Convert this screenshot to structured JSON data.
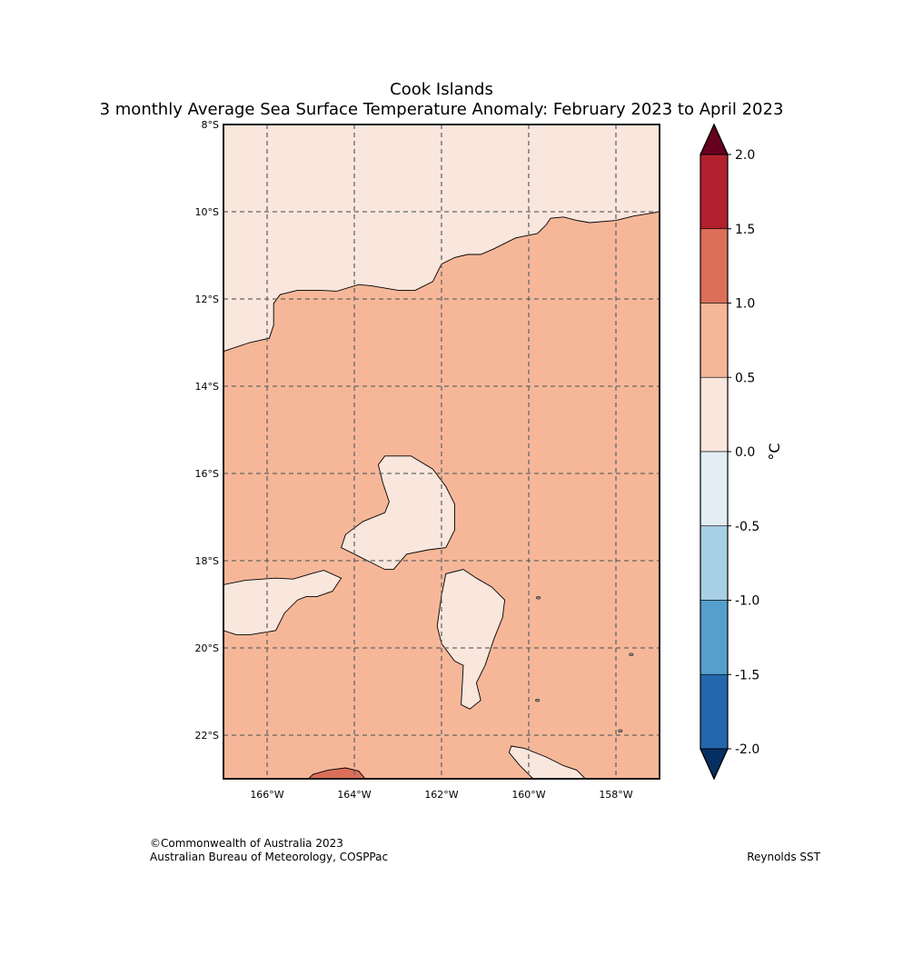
{
  "title": "Cook Islands",
  "subtitle": "3 monthly Average Sea Surface Temperature Anomaly: February 2023 to April 2023",
  "map": {
    "lon_range": [
      -167,
      -157
    ],
    "lat_range": [
      -23,
      -8
    ],
    "lon_ticks": [
      {
        "value": -166,
        "label": "166°W"
      },
      {
        "value": -164,
        "label": "164°W"
      },
      {
        "value": -162,
        "label": "162°W"
      },
      {
        "value": -160,
        "label": "160°W"
      },
      {
        "value": -158,
        "label": "158°W"
      }
    ],
    "lat_ticks": [
      {
        "value": -8,
        "label": "8°S"
      },
      {
        "value": -10,
        "label": "10°S"
      },
      {
        "value": -12,
        "label": "12°S"
      },
      {
        "value": -14,
        "label": "14°S"
      },
      {
        "value": -16,
        "label": "16°S"
      },
      {
        "value": -18,
        "label": "18°S"
      },
      {
        "value": -20,
        "label": "20°S"
      },
      {
        "value": -22,
        "label": "22°S"
      }
    ],
    "gridlines": true,
    "background_band": "0.5 to 1.0",
    "regions": [
      {
        "band": "0.0 to 0.5",
        "color": "#f9e6dc",
        "outline": [
          [
            -167,
            -8
          ],
          [
            -157,
            -8
          ],
          [
            -157,
            -10
          ],
          [
            -157.3,
            -10.05
          ],
          [
            -157.6,
            -10.1
          ],
          [
            -158,
            -10.2
          ],
          [
            -158.6,
            -10.25
          ],
          [
            -158.9,
            -10.2
          ],
          [
            -159.2,
            -10.12
          ],
          [
            -159.5,
            -10.15
          ],
          [
            -159.6,
            -10.3
          ],
          [
            -159.8,
            -10.5
          ],
          [
            -160.3,
            -10.6
          ],
          [
            -160.8,
            -10.85
          ],
          [
            -161.1,
            -10.98
          ],
          [
            -161.4,
            -10.98
          ],
          [
            -161.7,
            -11.05
          ],
          [
            -162,
            -11.2
          ],
          [
            -162.2,
            -11.6
          ],
          [
            -162.6,
            -11.8
          ],
          [
            -163,
            -11.8
          ],
          [
            -163.6,
            -11.7
          ],
          [
            -163.9,
            -11.67
          ],
          [
            -164.4,
            -11.82
          ],
          [
            -164.8,
            -11.8
          ],
          [
            -165.3,
            -11.8
          ],
          [
            -165.7,
            -11.9
          ],
          [
            -165.85,
            -12.1
          ],
          [
            -165.85,
            -12.6
          ],
          [
            -165.95,
            -12.9
          ],
          [
            -166.4,
            -13.0
          ],
          [
            -167,
            -13.2
          ]
        ]
      },
      {
        "band": "0.0 to 0.5",
        "color": "#f9e6dc",
        "outline": [
          [
            -162.7,
            -15.6
          ],
          [
            -162.2,
            -15.9
          ],
          [
            -161.9,
            -16.3
          ],
          [
            -161.7,
            -16.7
          ],
          [
            -161.7,
            -17.3
          ],
          [
            -161.9,
            -17.7
          ],
          [
            -162.3,
            -17.75
          ],
          [
            -162.8,
            -17.85
          ],
          [
            -163.1,
            -18.2
          ],
          [
            -163.3,
            -18.2
          ],
          [
            -163.6,
            -18.05
          ],
          [
            -163.9,
            -17.9
          ],
          [
            -164.3,
            -17.7
          ],
          [
            -164.2,
            -17.4
          ],
          [
            -163.8,
            -17.1
          ],
          [
            -163.3,
            -16.9
          ],
          [
            -163.2,
            -16.65
          ],
          [
            -163.35,
            -16.2
          ],
          [
            -163.45,
            -15.8
          ],
          [
            -163.3,
            -15.6
          ]
        ]
      },
      {
        "band": "0.0 to 0.5",
        "color": "#f9e6dc",
        "outline": [
          [
            -167,
            -18.55
          ],
          [
            -166.5,
            -18.45
          ],
          [
            -165.8,
            -18.4
          ],
          [
            -165.4,
            -18.42
          ],
          [
            -165.0,
            -18.3
          ],
          [
            -164.7,
            -18.22
          ],
          [
            -164.3,
            -18.4
          ],
          [
            -164.5,
            -18.7
          ],
          [
            -164.85,
            -18.82
          ],
          [
            -165.1,
            -18.82
          ],
          [
            -165.3,
            -18.9
          ],
          [
            -165.6,
            -19.2
          ],
          [
            -165.8,
            -19.6
          ],
          [
            -166.4,
            -19.7
          ],
          [
            -166.7,
            -19.7
          ],
          [
            -167,
            -19.6
          ]
        ]
      },
      {
        "band": "0.0 to 0.5",
        "color": "#f9e6dc",
        "outline": [
          [
            -161.5,
            -18.2
          ],
          [
            -161.9,
            -18.3
          ],
          [
            -162.0,
            -18.8
          ],
          [
            -162.1,
            -19.5
          ],
          [
            -162.0,
            -19.9
          ],
          [
            -161.7,
            -20.3
          ],
          [
            -161.5,
            -20.4
          ],
          [
            -161.55,
            -21.3
          ],
          [
            -161.35,
            -21.4
          ],
          [
            -161.1,
            -21.2
          ],
          [
            -161.2,
            -20.8
          ],
          [
            -161.0,
            -20.4
          ],
          [
            -160.8,
            -19.8
          ],
          [
            -160.6,
            -19.3
          ],
          [
            -160.55,
            -18.9
          ],
          [
            -160.85,
            -18.6
          ],
          [
            -161.2,
            -18.4
          ]
        ]
      },
      {
        "band": "0.0 to 0.5",
        "color": "#f9e6dc",
        "outline": [
          [
            -160.4,
            -22.25
          ],
          [
            -160.1,
            -22.3
          ],
          [
            -159.6,
            -22.5
          ],
          [
            -159.2,
            -22.7
          ],
          [
            -158.9,
            -22.8
          ],
          [
            -158.7,
            -23
          ],
          [
            -159.9,
            -23
          ],
          [
            -160.2,
            -22.7
          ],
          [
            -160.45,
            -22.4
          ]
        ]
      },
      {
        "band": "1.0 to 1.5",
        "color": "#dc6f59",
        "outline": [
          [
            -165.05,
            -23
          ],
          [
            -164.95,
            -22.9
          ],
          [
            -164.6,
            -22.8
          ],
          [
            -164.2,
            -22.75
          ],
          [
            -163.9,
            -22.82
          ],
          [
            -163.75,
            -23
          ]
        ]
      }
    ],
    "islands": [
      {
        "lon": -159.78,
        "lat": -18.85
      },
      {
        "lon": -159.8,
        "lat": -21.2
      },
      {
        "lon": -157.9,
        "lat": -21.9
      },
      {
        "lon": -157.65,
        "lat": -20.15
      }
    ]
  },
  "colorbar": {
    "unit": "°C",
    "ticks": [
      "2.0",
      "1.5",
      "1.0",
      "0.5",
      "0.0",
      "-0.5",
      "-1.0",
      "-1.5",
      "-2.0"
    ],
    "colors_top_to_bottom": [
      "#b2202e",
      "#dc6f59",
      "#f6b799",
      "#f9e6dc",
      "#e2eef4",
      "#a8d0e4",
      "#559fcd",
      "#2367ae"
    ],
    "over_color": "#67001f",
    "under_color": "#053061"
  },
  "footer": {
    "copyright": "©Commonwealth of Australia 2023",
    "agency": "Australian Bureau of Meteorology, COSPPac",
    "source": "Reynolds SST"
  }
}
